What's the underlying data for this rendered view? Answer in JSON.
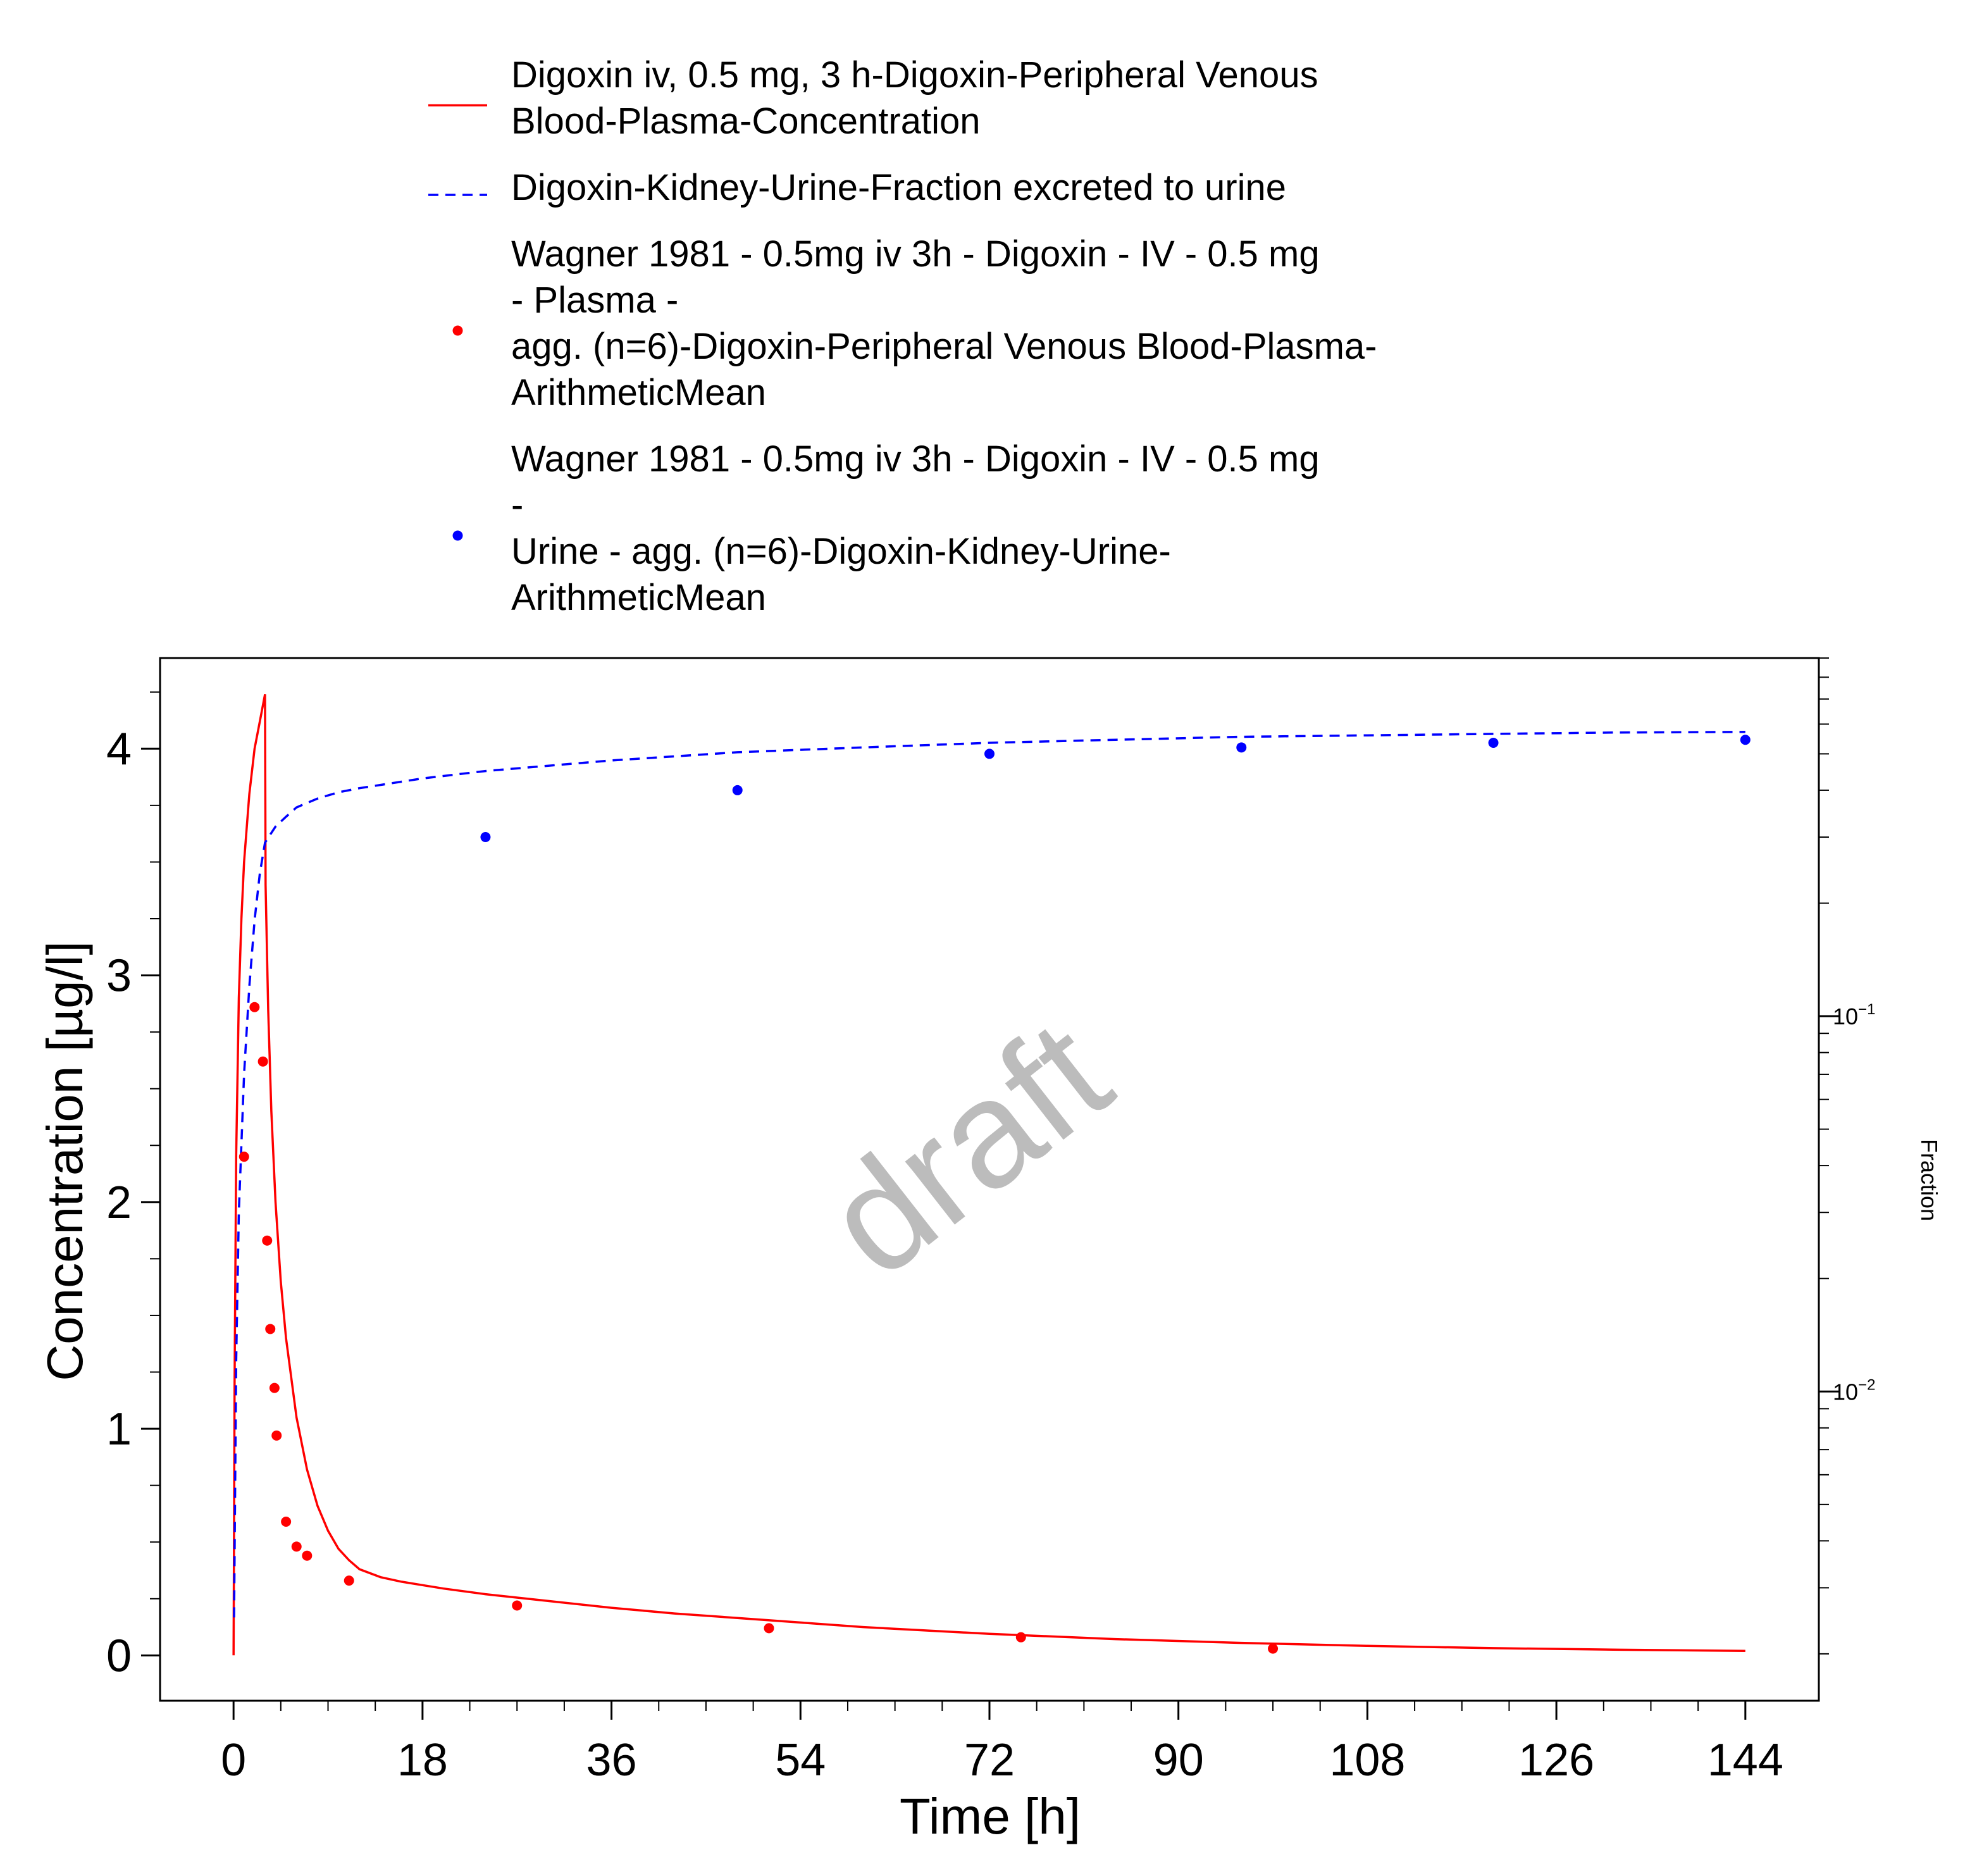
{
  "chart_data": {
    "type": "line",
    "title": "",
    "watermark": "draft",
    "xlabel": "Time [h]",
    "ylabel": "Concentration [µg/l]",
    "y2label": "Fraction",
    "xlim": [
      -7,
      151
    ],
    "ylim": [
      -0.2,
      4.4
    ],
    "y2lim_log": [
      0.0015,
      0.9
    ],
    "y2scale": "log",
    "grid": false,
    "legend_position": "top",
    "x_ticks": [
      0,
      18,
      36,
      54,
      72,
      90,
      108,
      126,
      144
    ],
    "x_tick_labels": [
      "0",
      "18",
      "36",
      "54",
      "72",
      "90",
      "108",
      "126",
      "144"
    ],
    "y_ticks": [
      0,
      1,
      2,
      3,
      4
    ],
    "y_tick_labels": [
      "0",
      "1",
      "2",
      "3",
      "4"
    ],
    "y2_ticks": [
      {
        "value": 0.1,
        "base": "10",
        "exp": "−1"
      },
      {
        "value": 0.01,
        "base": "10",
        "exp": "−2"
      }
    ],
    "series": [
      {
        "name": "Digoxin iv, 0.5 mg, 3 h-Digoxin-Peripheral Venous Blood-Plasma-Concentration",
        "legend_lines": [
          "Digoxin iv, 0.5 mg, 3 h-Digoxin-Peripheral Venous",
          "Blood-Plasma-Concentration"
        ],
        "kind": "line",
        "style": "solid",
        "color": "#ff0000",
        "axis": "left",
        "x": [
          0,
          0.1,
          0.25,
          0.5,
          0.75,
          1,
          1.5,
          2,
          2.5,
          3,
          3.05,
          3.3,
          3.6,
          4,
          4.5,
          5,
          6,
          7,
          8,
          9,
          10,
          11,
          12,
          14,
          16,
          18,
          20,
          24,
          30,
          36,
          42,
          48,
          54,
          60,
          72,
          84,
          96,
          108,
          120,
          132,
          144
        ],
        "y": [
          0,
          1.2,
          2.2,
          2.9,
          3.25,
          3.5,
          3.8,
          4.0,
          4.12,
          4.24,
          3.4,
          2.85,
          2.4,
          2.0,
          1.65,
          1.4,
          1.05,
          0.82,
          0.66,
          0.55,
          0.47,
          0.42,
          0.38,
          0.345,
          0.325,
          0.31,
          0.295,
          0.27,
          0.24,
          0.21,
          0.185,
          0.165,
          0.145,
          0.125,
          0.095,
          0.072,
          0.055,
          0.042,
          0.032,
          0.025,
          0.02
        ]
      },
      {
        "name": "Digoxin-Kidney-Urine-Fraction excreted to urine",
        "legend_lines": [
          "Digoxin-Kidney-Urine-Fraction excreted to urine"
        ],
        "kind": "line",
        "style": "dashed",
        "color": "#0000ff",
        "axis": "right",
        "x": [
          0.05,
          0.25,
          0.5,
          1,
          1.5,
          2,
          2.5,
          3,
          4,
          5,
          6,
          8,
          10,
          12,
          18,
          24,
          36,
          48,
          60,
          72,
          84,
          96,
          108,
          120,
          132,
          144
        ],
        "y": [
          0.0025,
          0.012,
          0.03,
          0.07,
          0.12,
          0.18,
          0.24,
          0.29,
          0.32,
          0.34,
          0.36,
          0.38,
          0.395,
          0.405,
          0.43,
          0.45,
          0.48,
          0.505,
          0.52,
          0.535,
          0.545,
          0.555,
          0.56,
          0.565,
          0.57,
          0.572
        ]
      },
      {
        "name": "Wagner 1981 - 0.5mg iv 3h - Digoxin - IV - 0.5 mg - Plasma - agg. (n=6)-Digoxin-Peripheral Venous Blood-Plasma-ArithmeticMean",
        "legend_lines": [
          "Wagner 1981 - 0.5mg iv 3h - Digoxin - IV - 0.5 mg",
          "- Plasma -",
          "agg. (n=6)-Digoxin-Peripheral Venous Blood-Plasma-",
          "ArithmeticMean"
        ],
        "kind": "scatter",
        "color": "#ff0000",
        "axis": "left",
        "x": [
          1,
          2,
          2.8,
          3.2,
          3.5,
          3.9,
          4.1,
          5,
          6,
          7,
          11,
          27,
          51,
          75,
          99
        ],
        "y": [
          2.2,
          2.86,
          2.62,
          1.83,
          1.44,
          1.18,
          0.97,
          0.59,
          0.48,
          0.44,
          0.33,
          0.22,
          0.12,
          0.08,
          0.03
        ]
      },
      {
        "name": "Wagner 1981 - 0.5mg iv 3h - Digoxin - IV - 0.5 mg - Urine - agg. (n=6)-Digoxin-Kidney-Urine-ArithmeticMean",
        "legend_lines": [
          "Wagner 1981 - 0.5mg iv 3h - Digoxin - IV - 0.5 mg",
          "-",
          "Urine - agg. (n=6)-Digoxin-Kidney-Urine-",
          "ArithmeticMean"
        ],
        "kind": "scatter",
        "color": "#0000ff",
        "axis": "right",
        "x": [
          24,
          48,
          72,
          96,
          120,
          144
        ],
        "y": [
          0.3,
          0.4,
          0.5,
          0.52,
          0.535,
          0.545
        ]
      }
    ]
  }
}
